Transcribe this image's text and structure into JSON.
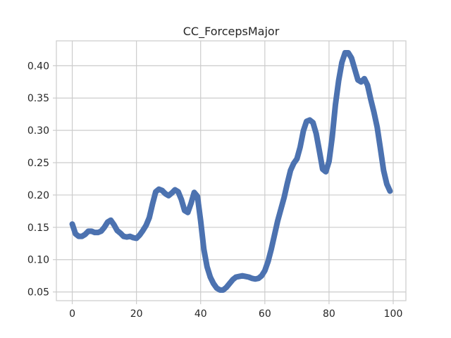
{
  "chart_data": {
    "type": "line",
    "title": "CC_ForcepsMajor",
    "xlabel": "",
    "ylabel": "",
    "xlim": [
      -4.95,
      103.95
    ],
    "ylim": [
      0.0365,
      0.4385
    ],
    "grid": true,
    "line_color": "#4c72b0",
    "grid_color": "#cccccc",
    "xticks": [
      0,
      20,
      40,
      60,
      80,
      100
    ],
    "yticks": [
      0.05,
      0.1,
      0.15,
      0.2,
      0.25,
      0.3,
      0.35,
      0.4
    ],
    "xtick_labels": [
      "0",
      "20",
      "40",
      "60",
      "80",
      "100"
    ],
    "ytick_labels": [
      "0.05",
      "0.10",
      "0.15",
      "0.20",
      "0.25",
      "0.30",
      "0.35",
      "0.40"
    ],
    "series": [
      {
        "name": "",
        "x": [
          0,
          1,
          2,
          3,
          4,
          5,
          6,
          7,
          8,
          9,
          10,
          11,
          12,
          13,
          14,
          15,
          16,
          17,
          18,
          19,
          20,
          21,
          22,
          23,
          24,
          25,
          26,
          27,
          28,
          29,
          30,
          31,
          32,
          33,
          34,
          35,
          36,
          37,
          38,
          39,
          40,
          41,
          42,
          43,
          44,
          45,
          46,
          47,
          48,
          49,
          50,
          51,
          52,
          53,
          54,
          55,
          56,
          57,
          58,
          59,
          60,
          61,
          62,
          63,
          64,
          65,
          66,
          67,
          68,
          69,
          70,
          71,
          72,
          73,
          74,
          75,
          76,
          77,
          78,
          79,
          80,
          81,
          82,
          83,
          84,
          85,
          86,
          87,
          88,
          89,
          90,
          91,
          92,
          93,
          94,
          95,
          96,
          97,
          98,
          99
        ],
        "y": [
          0.155,
          0.14,
          0.136,
          0.136,
          0.139,
          0.144,
          0.144,
          0.142,
          0.142,
          0.144,
          0.15,
          0.158,
          0.161,
          0.154,
          0.145,
          0.141,
          0.136,
          0.135,
          0.136,
          0.134,
          0.133,
          0.138,
          0.145,
          0.153,
          0.165,
          0.186,
          0.205,
          0.209,
          0.207,
          0.202,
          0.199,
          0.203,
          0.208,
          0.205,
          0.193,
          0.176,
          0.173,
          0.187,
          0.204,
          0.198,
          0.16,
          0.116,
          0.089,
          0.073,
          0.063,
          0.056,
          0.053,
          0.053,
          0.057,
          0.063,
          0.069,
          0.073,
          0.074,
          0.075,
          0.074,
          0.073,
          0.071,
          0.07,
          0.071,
          0.075,
          0.083,
          0.097,
          0.116,
          0.138,
          0.16,
          0.178,
          0.196,
          0.218,
          0.238,
          0.249,
          0.256,
          0.274,
          0.299,
          0.314,
          0.316,
          0.312,
          0.295,
          0.268,
          0.24,
          0.236,
          0.252,
          0.29,
          0.34,
          0.377,
          0.405,
          0.42,
          0.42,
          0.412,
          0.395,
          0.378,
          0.375,
          0.38,
          0.37,
          0.348,
          0.328,
          0.305,
          0.272,
          0.238,
          0.217,
          0.206
        ]
      }
    ]
  }
}
